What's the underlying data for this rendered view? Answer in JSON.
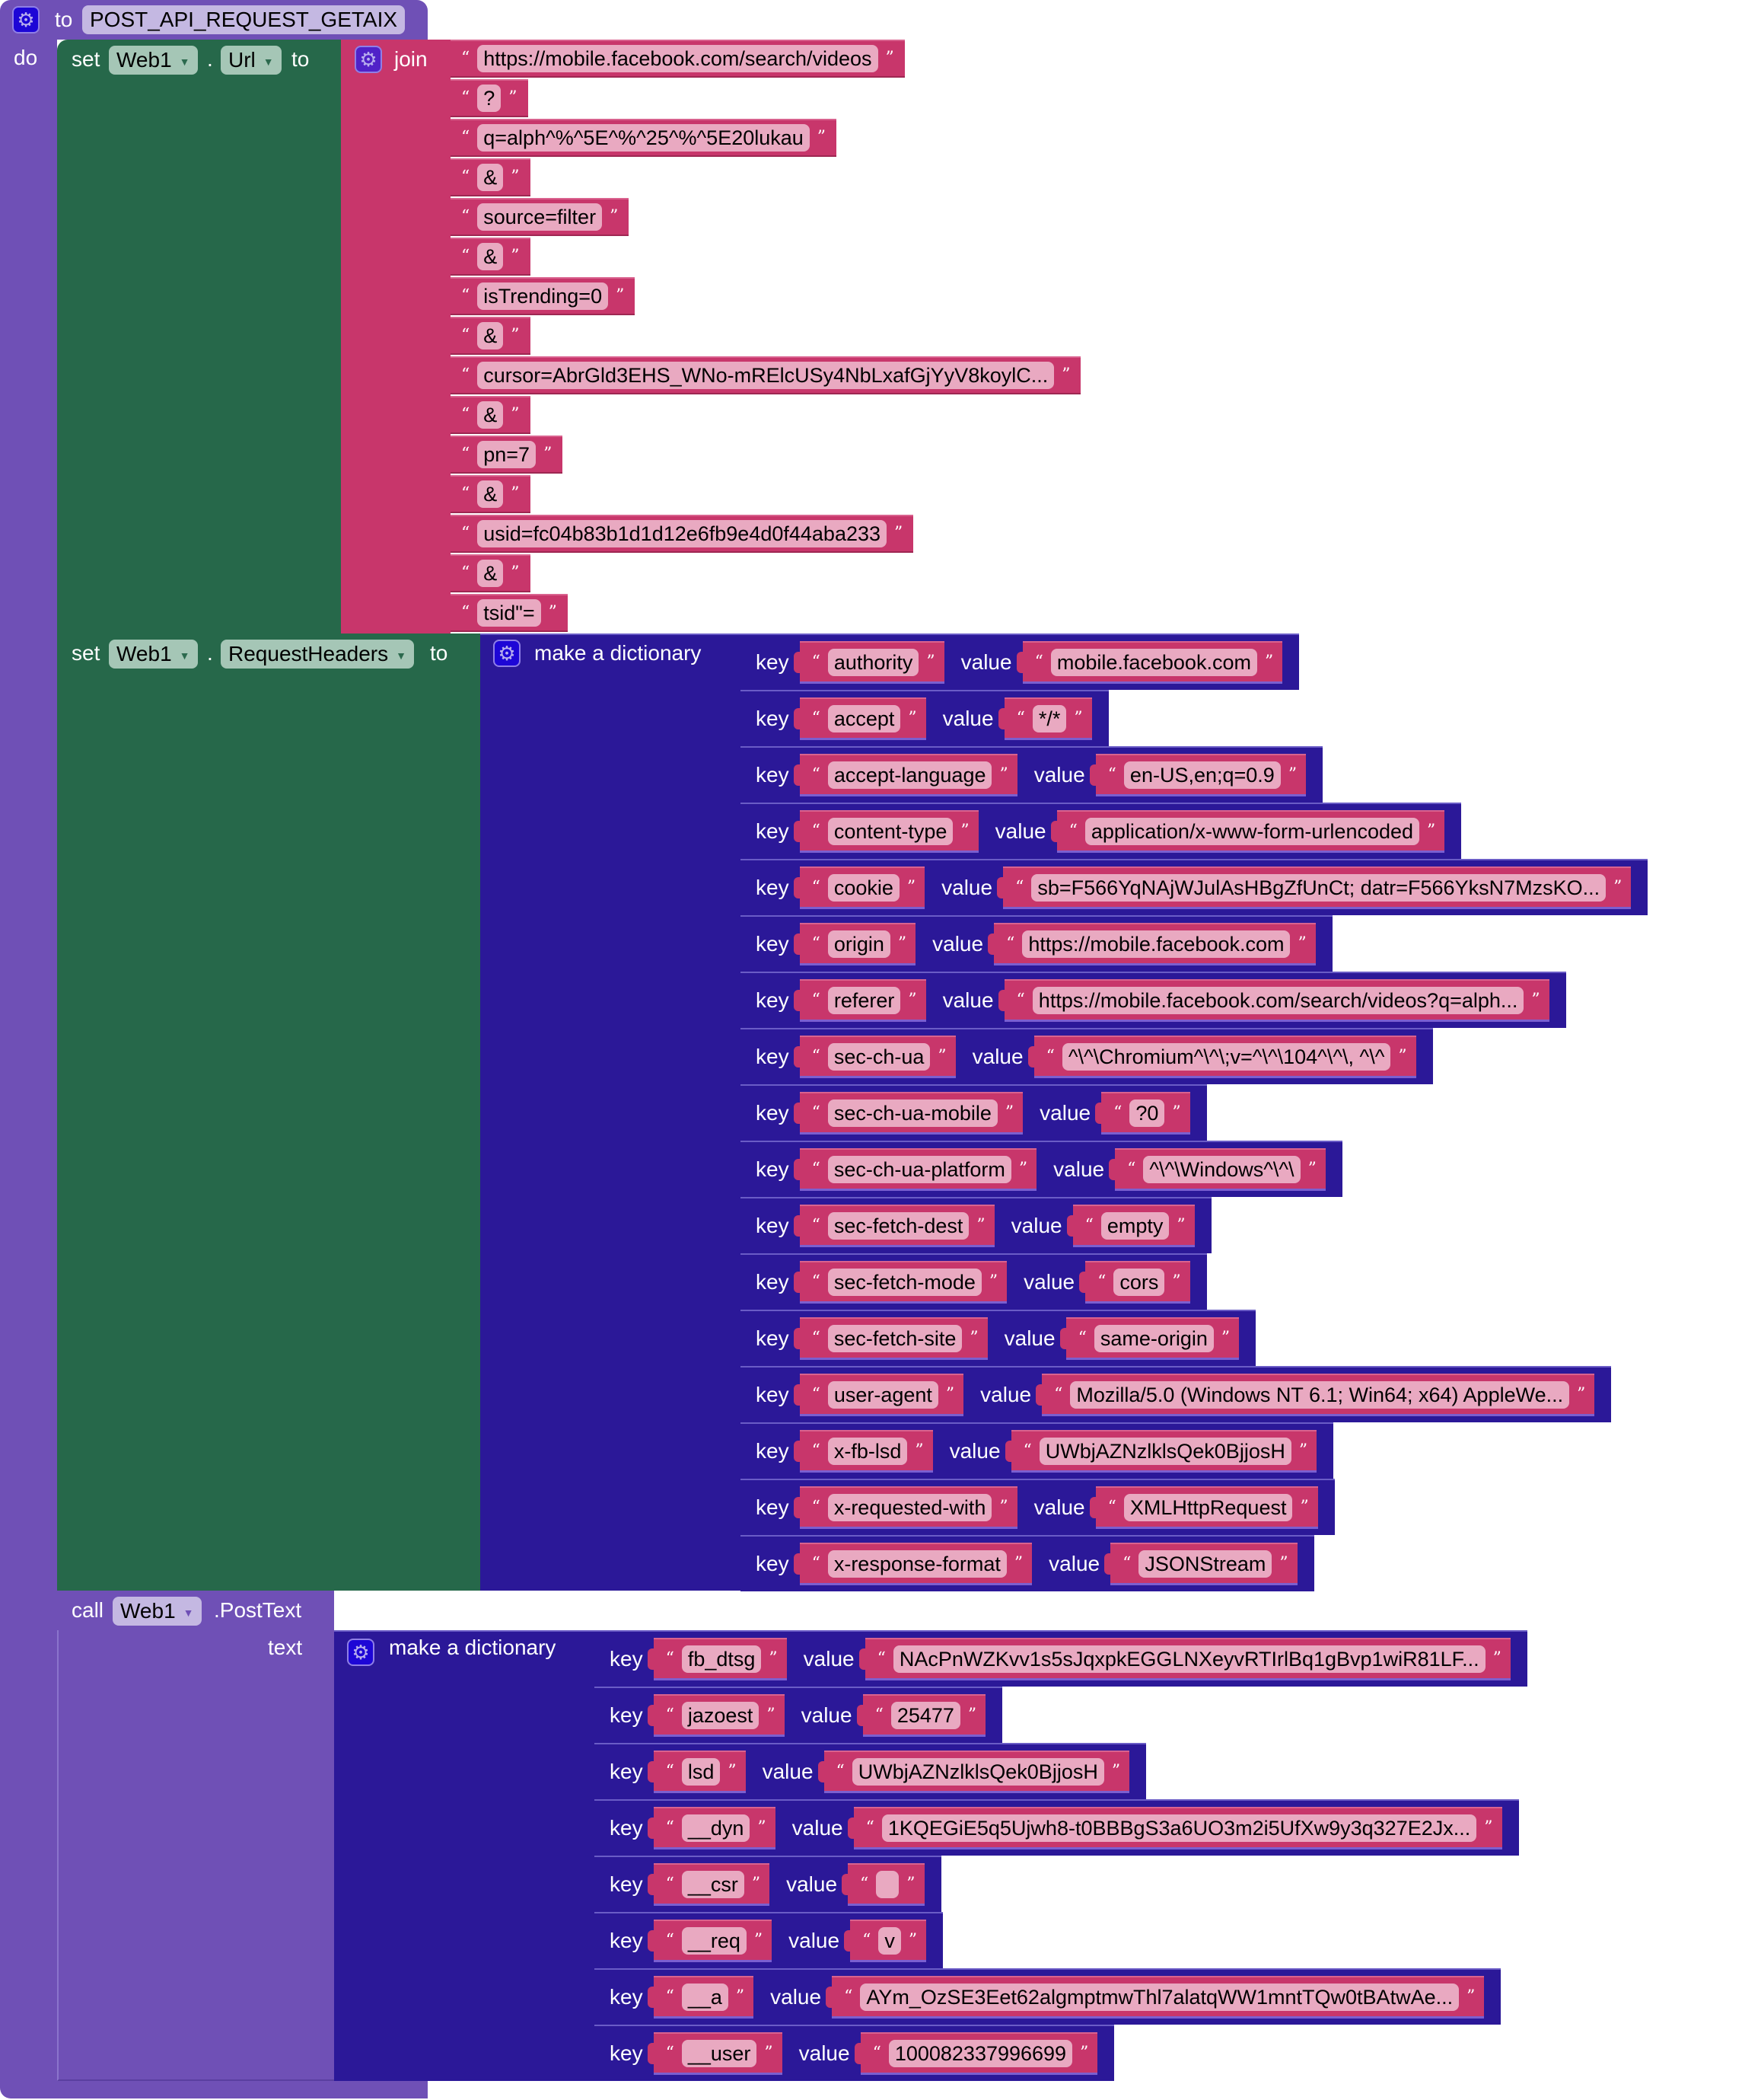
{
  "procedure": {
    "keyword_to": "to",
    "name": "POST_API_REQUEST_GETAIX",
    "keyword_do": "do"
  },
  "set_url": {
    "keyword_set": "set",
    "component": "Web1",
    "dot": ".",
    "property": "Url",
    "keyword_to": "to",
    "join_label": "join",
    "parts": [
      "https://mobile.facebook.com/search/videos",
      "?",
      "q=alph^%^5E^%^25^%^5E20lukau",
      "&",
      "source=filter",
      "&",
      "isTrending=0",
      "&",
      "cursor=AbrGld3EHS_WNo-mRElcUSy4NbLxafGjYyV8koylC...",
      "&",
      "pn=7",
      "&",
      "usid=fc04b83b1d1d12e6fb9e4d0f44aba233",
      "&",
      "tsid\"="
    ]
  },
  "set_headers": {
    "keyword_set": "set",
    "component": "Web1",
    "dot": ".",
    "property": "RequestHeaders",
    "keyword_to": "to",
    "dict_label": "make a dictionary",
    "key_label": "key",
    "value_label": "value",
    "pairs": [
      {
        "key": "authority",
        "value": "mobile.facebook.com"
      },
      {
        "key": "accept",
        "value": "*/*"
      },
      {
        "key": "accept-language",
        "value": "en-US,en;q=0.9"
      },
      {
        "key": "content-type",
        "value": "application/x-www-form-urlencoded"
      },
      {
        "key": "cookie",
        "value": "sb=F566YqNAjWJulAsHBgZfUnCt; datr=F566YksN7MzsKO..."
      },
      {
        "key": "origin",
        "value": "https://mobile.facebook.com"
      },
      {
        "key": "referer",
        "value": "https://mobile.facebook.com/search/videos?q=alph..."
      },
      {
        "key": "sec-ch-ua",
        "value": "^\\^\\Chromium^\\^\\;v=^\\^\\104^\\^\\, ^\\^"
      },
      {
        "key": "sec-ch-ua-mobile",
        "value": "?0"
      },
      {
        "key": "sec-ch-ua-platform",
        "value": "^\\^\\Windows^\\^\\"
      },
      {
        "key": "sec-fetch-dest",
        "value": "empty"
      },
      {
        "key": "sec-fetch-mode",
        "value": "cors"
      },
      {
        "key": "sec-fetch-site",
        "value": "same-origin"
      },
      {
        "key": "user-agent",
        "value": "Mozilla/5.0 (Windows NT 6.1; Win64; x64) AppleWe..."
      },
      {
        "key": "x-fb-lsd",
        "value": "UWbjAZNzlklsQek0BjjosH"
      },
      {
        "key": "x-requested-with",
        "value": "XMLHttpRequest"
      },
      {
        "key": "x-response-format",
        "value": "JSONStream"
      }
    ]
  },
  "call_post": {
    "keyword_call": "call",
    "component": "Web1",
    "method": ".PostText",
    "arg_label": "text",
    "dict_label": "make a dictionary",
    "key_label": "key",
    "value_label": "value",
    "pairs": [
      {
        "key": "fb_dtsg",
        "value": "NAcPnWZKvv1s5sJqxpkEGGLNXeyvRTIrlBq1gBvp1wiR81LF..."
      },
      {
        "key": "jazoest",
        "value": "25477"
      },
      {
        "key": "lsd",
        "value": "UWbjAZNzlklsQek0BjjosH"
      },
      {
        "key": "__dyn",
        "value": "1KQEGiE5q5Ujwh8-t0BBBgS3a6UO3m2i5UfXw9y3q327E2Jx..."
      },
      {
        "key": "__csr",
        "value": ""
      },
      {
        "key": "__req",
        "value": "v"
      },
      {
        "key": "__a",
        "value": "AYm_OzSE3Eet62algmptmwThl7alatqWW1mntTQw0tBAtwAe..."
      },
      {
        "key": "__user",
        "value": "100082337996699"
      }
    ]
  },
  "glyphs": {
    "open_quote": "“",
    "close_quote": "”",
    "dropdown": "▼",
    "gear": "⚙"
  },
  "colors": {
    "procedure": "#6f50b6",
    "set_block": "#26684a",
    "text_block": "#c8366b",
    "dictionary": "#2b1898",
    "text_pill": "#e9a9c1"
  }
}
